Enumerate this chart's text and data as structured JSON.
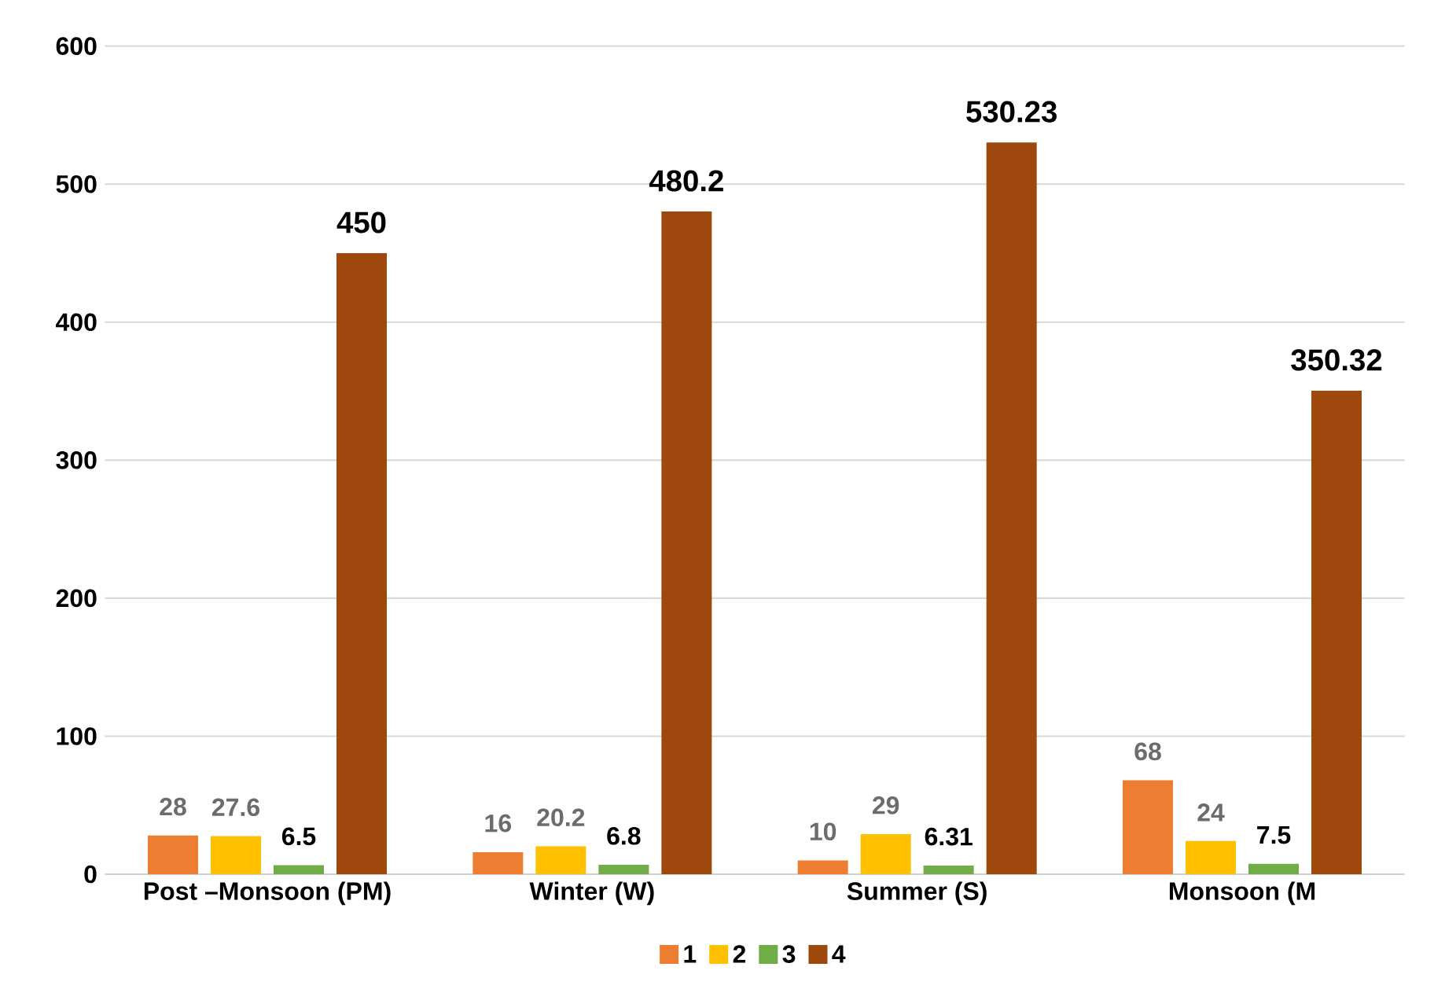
{
  "chart_data": {
    "type": "bar",
    "categories": [
      "Post –Monsoon (PM)",
      "Winter (W)",
      "Summer (S)",
      "Monsoon (M"
    ],
    "series": [
      {
        "name": "1",
        "color": "#ed7d31",
        "values": [
          28,
          16,
          10,
          68
        ]
      },
      {
        "name": "2",
        "color": "#ffc000",
        "values": [
          27.6,
          20.2,
          29,
          24
        ]
      },
      {
        "name": "3",
        "color": "#70ad47",
        "values": [
          6.5,
          6.8,
          6.31,
          7.5
        ]
      },
      {
        "name": "4",
        "color": "#9e480e",
        "values": [
          450,
          480.2,
          530.23,
          350.32
        ]
      }
    ],
    "ylim": [
      0,
      600
    ],
    "yticks": [
      0,
      100,
      200,
      300,
      400,
      500,
      600
    ],
    "grid": "y",
    "legend": "bottom",
    "data_labels": true
  }
}
